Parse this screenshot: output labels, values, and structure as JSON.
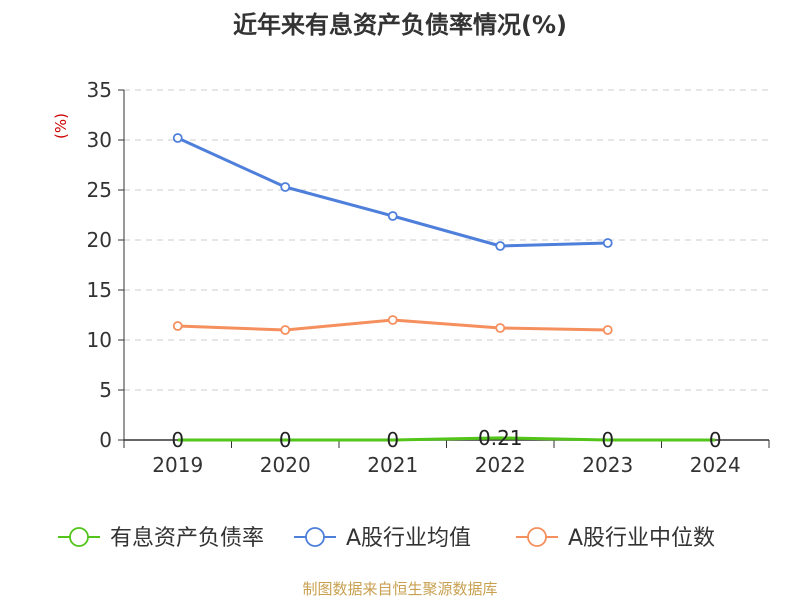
{
  "chart_data": {
    "type": "line",
    "title": "近年来有息资产负债率情况(%)",
    "ylabel": "(%)",
    "ylim": [
      0,
      35
    ],
    "yticks": [
      0,
      5,
      10,
      15,
      20,
      25,
      30,
      35
    ],
    "categories": [
      "2019",
      "2020",
      "2021",
      "2022",
      "2023",
      "2024"
    ],
    "grid": true,
    "legend_position": "bottom",
    "series": [
      {
        "name": "有息资产负债率",
        "color": "#52c41a",
        "values": [
          0,
          0,
          0,
          0.21,
          0,
          0
        ],
        "data_labels": [
          "0",
          "0",
          "0",
          "0.21",
          "0",
          "0"
        ]
      },
      {
        "name": "A股行业均值",
        "color": "#4e7fdb",
        "values": [
          30.2,
          25.3,
          22.4,
          19.4,
          19.7,
          null
        ],
        "data_labels": []
      },
      {
        "name": "A股行业中位数",
        "color": "#f5905e",
        "values": [
          11.4,
          11.0,
          12.0,
          11.2,
          11.0,
          null
        ],
        "data_labels": []
      }
    ]
  },
  "source": "制图数据来自恒生聚源数据库",
  "colors": {
    "title": "#333333",
    "axis": "#333333",
    "grid": "#cccccc",
    "ylabel": "#cc0000",
    "source": "#c8a050"
  }
}
